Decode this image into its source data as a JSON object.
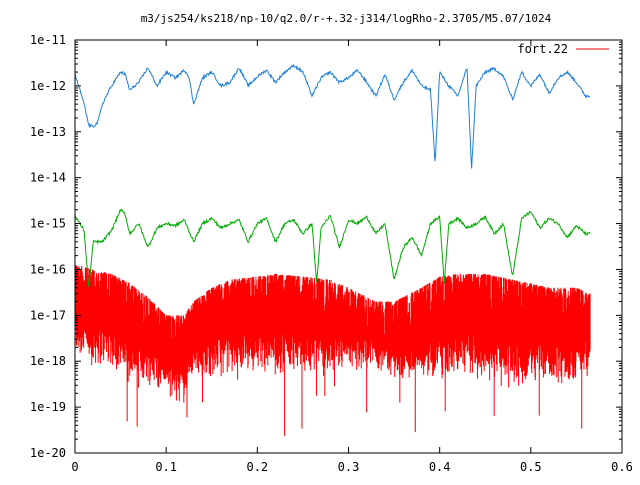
{
  "chart_data": {
    "type": "line",
    "title": "m3/js254/ks218/np-10/q2.0/r-+.32-j314/logRho-2.3705/M5.07/1024",
    "xlabel": "",
    "ylabel": "",
    "xlim": [
      0,
      0.6
    ],
    "ylim": [
      1e-20,
      1e-11
    ],
    "yscale": "log",
    "x_ticks": [
      0,
      0.1,
      0.2,
      0.3,
      0.4,
      0.5,
      0.6
    ],
    "x_tick_labels": [
      "0",
      "0.1",
      "0.2",
      "0.3",
      "0.4",
      "0.5",
      "0.6"
    ],
    "y_ticks": [
      1e-20,
      1e-19,
      1e-18,
      1e-17,
      1e-16,
      1e-15,
      1e-14,
      1e-13,
      1e-12,
      1e-11
    ],
    "y_tick_labels": [
      "1e-20",
      "1e-19",
      "1e-18",
      "1e-17",
      "1e-16",
      "1e-15",
      "1e-14",
      "1e-13",
      "1e-12",
      "1e-11"
    ],
    "grid": false,
    "legend_position": "top-right",
    "legend_entries": [
      "fort.22"
    ],
    "series": [
      {
        "color": "#1f7fd9",
        "x": [
          0.0,
          0.01,
          0.015,
          0.02,
          0.025,
          0.03,
          0.04,
          0.05,
          0.055,
          0.06,
          0.07,
          0.08,
          0.09,
          0.1,
          0.11,
          0.12,
          0.125,
          0.13,
          0.14,
          0.15,
          0.16,
          0.17,
          0.18,
          0.19,
          0.2,
          0.21,
          0.22,
          0.23,
          0.24,
          0.25,
          0.26,
          0.27,
          0.28,
          0.29,
          0.3,
          0.31,
          0.32,
          0.33,
          0.34,
          0.35,
          0.36,
          0.37,
          0.38,
          0.39,
          0.395,
          0.4,
          0.41,
          0.42,
          0.43,
          0.435,
          0.44,
          0.45,
          0.46,
          0.47,
          0.48,
          0.49,
          0.5,
          0.51,
          0.52,
          0.53,
          0.54,
          0.55,
          0.56,
          0.565
        ],
        "y": [
          1.8e-12,
          4e-13,
          1.4e-13,
          1.3e-13,
          1.6e-13,
          4e-13,
          1e-12,
          2e-12,
          1.8e-12,
          8e-13,
          1.2e-12,
          2.5e-12,
          1e-12,
          2e-12,
          1.5e-12,
          2.2e-12,
          1.6e-12,
          4e-13,
          1.5e-12,
          2e-12,
          1e-12,
          1.2e-12,
          2.5e-12,
          1e-12,
          1.6e-12,
          2.2e-12,
          1.2e-12,
          2e-12,
          2.8e-12,
          2e-12,
          6e-13,
          1.5e-12,
          2e-12,
          1.2e-12,
          1.5e-12,
          2.2e-12,
          1.2e-12,
          6e-13,
          1.8e-12,
          5e-13,
          1.2e-12,
          2.2e-12,
          1e-12,
          8e-13,
          2e-14,
          2e-12,
          1e-12,
          6e-13,
          2.5e-12,
          1.5e-14,
          1e-12,
          2e-12,
          2.4e-12,
          1.6e-12,
          5e-13,
          2e-12,
          1e-12,
          1.8e-12,
          7e-13,
          1.5e-12,
          2e-12,
          1.2e-12,
          6e-13,
          6e-13
        ]
      },
      {
        "color": "#00aa00",
        "x": [
          0.0,
          0.01,
          0.015,
          0.02,
          0.03,
          0.04,
          0.05,
          0.055,
          0.06,
          0.07,
          0.08,
          0.09,
          0.1,
          0.11,
          0.12,
          0.13,
          0.14,
          0.15,
          0.16,
          0.17,
          0.18,
          0.19,
          0.2,
          0.21,
          0.22,
          0.23,
          0.24,
          0.25,
          0.26,
          0.265,
          0.27,
          0.28,
          0.29,
          0.3,
          0.31,
          0.32,
          0.33,
          0.34,
          0.35,
          0.36,
          0.37,
          0.38,
          0.39,
          0.4,
          0.405,
          0.41,
          0.42,
          0.43,
          0.44,
          0.45,
          0.46,
          0.47,
          0.48,
          0.49,
          0.5,
          0.51,
          0.52,
          0.53,
          0.54,
          0.55,
          0.56,
          0.565
        ],
        "y": [
          1.5e-15,
          7e-16,
          4e-17,
          4e-16,
          4e-16,
          7e-16,
          2e-15,
          1.6e-15,
          6e-16,
          1e-15,
          3e-16,
          8e-16,
          1e-15,
          9e-16,
          1.2e-15,
          4e-16,
          1e-15,
          1.3e-15,
          8e-16,
          1e-15,
          1.2e-15,
          4e-16,
          1e-15,
          1.3e-15,
          4e-16,
          1e-15,
          1.2e-15,
          6e-16,
          1e-15,
          5e-17,
          8e-16,
          1.5e-15,
          3e-16,
          1.2e-15,
          1e-15,
          1.4e-15,
          6e-16,
          1e-15,
          6e-17,
          3e-16,
          5e-16,
          2e-16,
          1e-15,
          1.4e-15,
          5e-17,
          1e-15,
          1.3e-15,
          8e-16,
          1e-15,
          1.4e-15,
          6e-16,
          1e-15,
          7e-17,
          1.3e-15,
          1.8e-15,
          8e-16,
          1.3e-15,
          1e-15,
          5e-16,
          9e-16,
          6e-16,
          6e-16
        ]
      },
      {
        "name": "fort.22",
        "color": "#ff0000",
        "x": [
          0.0,
          0.02,
          0.04,
          0.06,
          0.08,
          0.1,
          0.11,
          0.12,
          0.13,
          0.15,
          0.17,
          0.2,
          0.22,
          0.25,
          0.28,
          0.3,
          0.33,
          0.35,
          0.38,
          0.4,
          0.42,
          0.45,
          0.48,
          0.5,
          0.52,
          0.55,
          0.565
        ],
        "y_upper": [
          1.3e-16,
          1e-16,
          8e-17,
          5e-17,
          2.5e-17,
          1e-17,
          1e-17,
          1e-17,
          2e-17,
          4e-17,
          6e-17,
          7e-17,
          8e-17,
          7e-17,
          6e-17,
          4e-17,
          2e-17,
          2e-17,
          4e-17,
          7e-17,
          8e-17,
          8e-17,
          6e-17,
          5e-17,
          4e-17,
          4e-17,
          3e-17
        ],
        "y_lower": [
          1e-18,
          7e-19,
          7e-19,
          3e-19,
          3e-19,
          2e-19,
          1e-19,
          1.5e-19,
          5e-19,
          4e-19,
          5e-19,
          6e-19,
          4e-19,
          6e-19,
          4e-19,
          5e-19,
          7e-19,
          4e-19,
          3e-19,
          4e-19,
          4e-19,
          4e-19,
          2e-19,
          4e-19,
          3e-19,
          3e-19,
          5e-19
        ],
        "y_min_spike": 1.5e-20
      }
    ]
  }
}
